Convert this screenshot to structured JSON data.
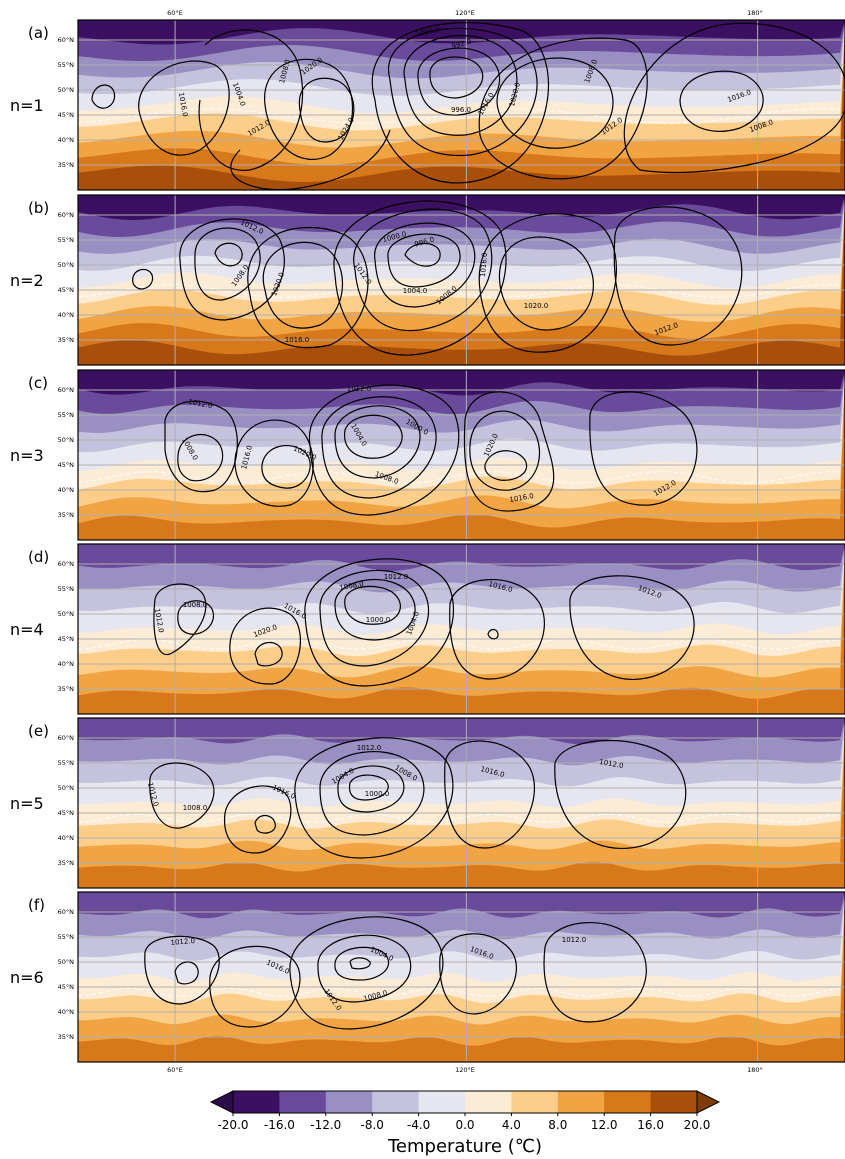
{
  "figure": {
    "lon_ticks": [
      "60°E",
      "120°E",
      "180°"
    ],
    "lat_ticks": [
      "35°N",
      "40°N",
      "45°N",
      "50°N",
      "55°N",
      "60°N"
    ],
    "colorbar": {
      "title": "Temperature (℃)",
      "levels": [
        -20,
        -16,
        -12,
        -8,
        -4,
        0,
        4,
        8,
        12,
        16,
        20
      ],
      "tick_labels": [
        "-20.0",
        "-16.0",
        "-12.0",
        "-8.0",
        "-4.0",
        "0.0",
        "4.0",
        "8.0",
        "12.0",
        "16.0",
        "20.0"
      ],
      "colors": [
        "#2d0a4b",
        "#542788",
        "#8073ac",
        "#b2abd2",
        "#d8daeb",
        "#f7f7f7",
        "#fee0b6",
        "#fdb863",
        "#e08214",
        "#b35806",
        "#7f3b08"
      ],
      "bins": [
        "#3b0f62",
        "#6a4a9a",
        "#9a8fc2",
        "#c5c2de",
        "#e6e6f0",
        "#fcebd5",
        "#fdcd8a",
        "#f0a443",
        "#d7781b",
        "#a84f0c"
      ],
      "under_color": "#2d0a4b",
      "over_color": "#7f3b08"
    }
  },
  "chart_data": {
    "type": "map-contour-panels",
    "x_range": [
      40,
      198
    ],
    "y_range": [
      30,
      64
    ],
    "panels": [
      {
        "label": "(a)",
        "n_label": "n=1",
        "zonal_wavenumber": 1,
        "temp_bands_top_to_bottom": [
          -20,
          -16,
          -12,
          -8,
          -4,
          0,
          4,
          8,
          12,
          16
        ],
        "contour_labels": [
          "1016.0",
          "1004.0",
          "1008.0",
          "1020.0",
          "1024.0",
          "1012.0",
          "996.0",
          "992.0",
          "1000.0",
          "1016.0",
          "1020.0",
          "1008.0",
          "1012.0",
          "1016.0",
          "1008.0"
        ]
      },
      {
        "label": "(b)",
        "n_label": "n=2",
        "zonal_wavenumber": 2,
        "temp_bands_top_to_bottom": [
          -20,
          -16,
          -12,
          -8,
          -4,
          0,
          4,
          8,
          12,
          16
        ],
        "contour_labels": [
          "1012.0",
          "1008.0",
          "1020.0",
          "1000.0",
          "996.0",
          "1012.0",
          "1004.0",
          "1008.0",
          "1016.0",
          "1020.0",
          "1012.0",
          "1016.0"
        ]
      },
      {
        "label": "(c)",
        "n_label": "n=3",
        "zonal_wavenumber": 3,
        "temp_bands_top_to_bottom": [
          -20,
          -16,
          -12,
          -8,
          -4,
          0,
          4,
          8,
          12
        ],
        "contour_labels": [
          "1012.0",
          "1012.0",
          "1008.0",
          "1016.0",
          "1020.0",
          "1004.0",
          "1000.0",
          "1008.0",
          "1020.0",
          "1016.0",
          "1012.0"
        ]
      },
      {
        "label": "(d)",
        "n_label": "n=4",
        "zonal_wavenumber": 4,
        "temp_bands_top_to_bottom": [
          -16,
          -12,
          -8,
          -4,
          0,
          4,
          8,
          12
        ],
        "contour_labels": [
          "1012.0",
          "1008.0",
          "1016.0",
          "1020.0",
          "1008.0",
          "1012.0",
          "1000.0",
          "1004.0",
          "1016.0",
          "1012.0"
        ]
      },
      {
        "label": "(e)",
        "n_label": "n=5",
        "zonal_wavenumber": 5,
        "temp_bands_top_to_bottom": [
          -16,
          -12,
          -8,
          -4,
          0,
          4,
          8,
          12
        ],
        "contour_labels": [
          "1012.0",
          "1008.0",
          "1016.0",
          "1012.0",
          "1004.0",
          "1008.0",
          "1000.0",
          "1016.0",
          "1012.0"
        ]
      },
      {
        "label": "(f)",
        "n_label": "n=6",
        "zonal_wavenumber": 6,
        "temp_bands_top_to_bottom": [
          -16,
          -12,
          -8,
          -4,
          0,
          4,
          8,
          12
        ],
        "contour_labels": [
          "1012.0",
          "1016.0",
          "1004.0",
          "1012.0",
          "1008.0",
          "1016.0",
          "1012.0"
        ]
      }
    ]
  }
}
